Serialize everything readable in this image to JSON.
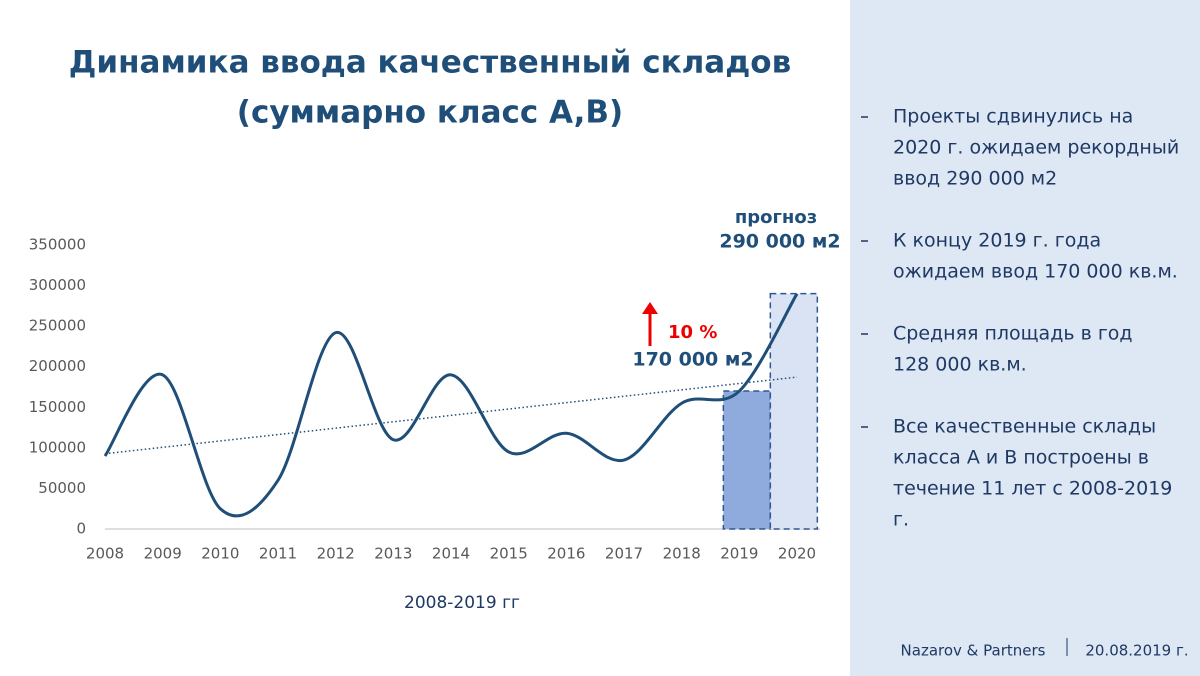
{
  "title": [
    "Динамика ввода качественный складов",
    "(суммарно класс A,B)"
  ],
  "chart_data": {
    "type": "line",
    "x": [
      2008,
      2009,
      2010,
      2011,
      2012,
      2013,
      2014,
      2015,
      2016,
      2017,
      2018,
      2019,
      2020
    ],
    "xlim": [
      2008,
      2020
    ],
    "series": [
      {
        "color": "#1f4e79",
        "values": [
          90000,
          190000,
          25000,
          60000,
          242000,
          110000,
          190000,
          95000,
          118000,
          85000,
          155000,
          170000,
          290000
        ]
      }
    ],
    "ylim": [
      0,
      350000
    ],
    "yticks": [
      0,
      50000,
      100000,
      150000,
      200000,
      250000,
      300000,
      350000
    ],
    "xlabel": "2008-2019 гг",
    "trendline": true,
    "annotations": {
      "forecast": "прогноз",
      "forecast_value": "290 000 м2",
      "growth": "10 %",
      "current_value": "170 000 м2"
    }
  },
  "notes": [
    [
      "Проекты сдвинулись на",
      "2020 г. ожидаем рекордный",
      "ввод 290 000 м2"
    ],
    [
      "К концу 2019 г. года",
      "ожидаем ввод 170 000 кв.м."
    ],
    [
      "Средняя площадь в год",
      "128 000 кв.м."
    ],
    [
      "Все качественные склады",
      "класса А и В построены в",
      "течение 11 лет с 2008-2019",
      "г."
    ]
  ],
  "footer": {
    "company": "Nazarov & Partners",
    "date": "20.08.2019 г."
  }
}
